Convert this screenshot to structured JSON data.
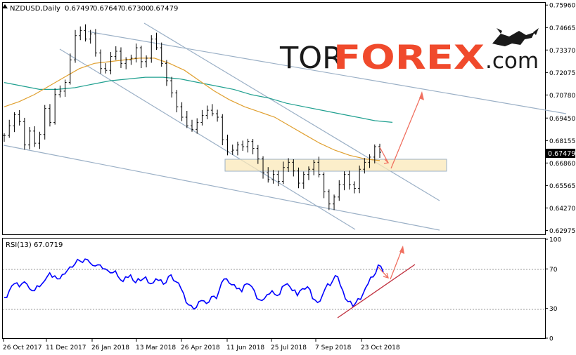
{
  "chart_data": [
    {
      "type": "candlestick",
      "title": "NZDUSD,Daily",
      "ohlc": [
        "0.67497",
        "0.67647",
        "0.67300",
        "0.67479"
      ],
      "last_price": "0.67479",
      "y_ticks": [
        "0.75960",
        "0.74665",
        "0.73370",
        "0.72075",
        "0.70780",
        "0.69450",
        "0.68155",
        "0.66860",
        "0.65565",
        "0.64270",
        "0.62975"
      ],
      "x_ticks": [
        "26 Oct 2017",
        "11 Dec 2017",
        "26 Jan 2018",
        "13 Mar 2018",
        "26 Apr 2018",
        "11 Jun 2018",
        "25 Jul 2018",
        "7 Sep 2018",
        "23 Oct 2018"
      ],
      "ylim": [
        0.6275,
        0.7605
      ],
      "series": [
        {
          "name": "",
          "kind": "close_approx",
          "color": "#000000",
          "values": [
            0.6845,
            0.69,
            0.6965,
            0.6925,
            0.679,
            0.687,
            0.68,
            0.685,
            0.7,
            0.692,
            0.708,
            0.71,
            0.715,
            0.728,
            0.742,
            0.745,
            0.74,
            0.743,
            0.732,
            0.723,
            0.722,
            0.73,
            0.733,
            0.726,
            0.728,
            0.729,
            0.735,
            0.727,
            0.729,
            0.74,
            0.735,
            0.726,
            0.716,
            0.709,
            0.701,
            0.695,
            0.69,
            0.688,
            0.692,
            0.696,
            0.699,
            0.697,
            0.695,
            0.682,
            0.675,
            0.676,
            0.679,
            0.678,
            0.681,
            0.677,
            0.671,
            0.663,
            0.659,
            0.662,
            0.658,
            0.666,
            0.669,
            0.664,
            0.657,
            0.662,
            0.665,
            0.669,
            0.662,
            0.652,
            0.645,
            0.649,
            0.656,
            0.662,
            0.656,
            0.654,
            0.665,
            0.669,
            0.672,
            0.678,
            0.6748
          ]
        },
        {
          "name": "",
          "kind": "ma_fast",
          "color": "#e0a030",
          "values": [
            0.701,
            0.704,
            0.708,
            0.713,
            0.718,
            0.723,
            0.726,
            0.727,
            0.728,
            0.729,
            0.729,
            0.726,
            0.722,
            0.716,
            0.71,
            0.705,
            0.701,
            0.698,
            0.695,
            0.69,
            0.685,
            0.68,
            0.676,
            0.673,
            0.671,
            0.67
          ]
        },
        {
          "name": "",
          "kind": "ma_slow",
          "color": "#20a090",
          "values": [
            0.715,
            0.713,
            0.711,
            0.711,
            0.712,
            0.714,
            0.716,
            0.717,
            0.718,
            0.718,
            0.717,
            0.715,
            0.713,
            0.711,
            0.708,
            0.706,
            0.703,
            0.701,
            0.699,
            0.697,
            0.695,
            0.693,
            0.692
          ]
        }
      ],
      "x_range_labels": [
        "26 Oct 2017",
        "23 Oct 2018"
      ]
    },
    {
      "type": "line",
      "title": "RSI(13) 67.0719",
      "ylim": [
        0,
        100
      ],
      "y_ticks": [
        "100",
        "70",
        "30",
        "0"
      ],
      "series": [
        {
          "name": "",
          "color": "#0000ff",
          "values": [
            41,
            48,
            55,
            52,
            57,
            50,
            48,
            52,
            58,
            66,
            63,
            60,
            65,
            72,
            75,
            78,
            80,
            76,
            73,
            74,
            70,
            66,
            68,
            59,
            62,
            64,
            56,
            58,
            62,
            55,
            60,
            59,
            56,
            64,
            57,
            50,
            36,
            33,
            31,
            38,
            35,
            42,
            40,
            56,
            60,
            54,
            50,
            47,
            55,
            52,
            40,
            38,
            44,
            48,
            43,
            52,
            55,
            48,
            43,
            50,
            52,
            40,
            36,
            44,
            55,
            58,
            62,
            48,
            37,
            32,
            40,
            45,
            55,
            62,
            74,
            67
          ]
        }
      ]
    }
  ],
  "logo": {
    "tor": "TOR",
    "forex": "FOREX",
    "domain": ".com"
  }
}
